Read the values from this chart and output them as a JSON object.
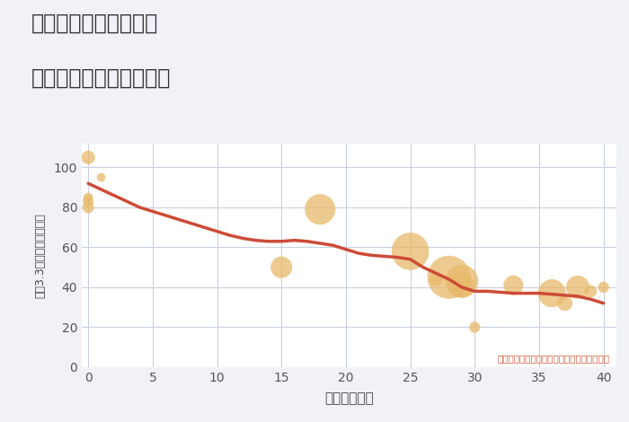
{
  "title_line1": "兵庫県西宮市青葉台の",
  "title_line2": "築年数別中古戸建て価格",
  "xlabel": "築年数（年）",
  "ylabel": "坪（3.3㎡）単価（万円）",
  "annotation": "円の大きさは、取引のあった物件面積を示す",
  "background_color": "#f0f2f7",
  "plot_bg_color": "#ffffff",
  "grid_color": "#c8d0e0",
  "title_color": "#333333",
  "line_color": "#cd4b36",
  "scatter_color": "#e8b96a",
  "scatter_alpha": 0.75,
  "annotation_color": "#cc5533",
  "xlim": [
    -0.5,
    41
  ],
  "ylim": [
    0,
    112
  ],
  "yticks": [
    0,
    20,
    40,
    60,
    80,
    100
  ],
  "xticks": [
    0,
    5,
    10,
    15,
    20,
    25,
    30,
    35,
    40
  ],
  "scatter_x": [
    0,
    0,
    1,
    0,
    0,
    15,
    18,
    25,
    27,
    28,
    29,
    29,
    30,
    33,
    36,
    37,
    38,
    39,
    40
  ],
  "scatter_y": [
    105,
    85,
    95,
    80,
    83,
    50,
    79,
    58,
    44,
    45,
    43,
    41,
    20,
    41,
    37,
    32,
    40,
    38,
    40
  ],
  "scatter_size": [
    120,
    60,
    50,
    90,
    80,
    300,
    600,
    900,
    120,
    1200,
    700,
    400,
    80,
    250,
    500,
    150,
    350,
    100,
    80
  ],
  "line_x": [
    0,
    1,
    2,
    3,
    4,
    5,
    6,
    7,
    8,
    9,
    10,
    11,
    12,
    13,
    14,
    15,
    16,
    17,
    18,
    19,
    20,
    21,
    22,
    23,
    24,
    25,
    26,
    27,
    28,
    29,
    30,
    31,
    32,
    33,
    34,
    35,
    36,
    37,
    38,
    39,
    40
  ],
  "line_y": [
    92,
    89,
    86,
    83,
    80,
    78,
    76,
    74,
    72,
    70,
    68,
    66,
    64.5,
    63.5,
    63,
    63,
    63.5,
    63,
    62,
    61,
    59,
    57,
    56,
    55.5,
    55,
    54,
    50,
    47,
    44,
    40,
    38,
    38,
    37.5,
    37,
    37,
    37,
    36.5,
    36,
    35.5,
    34,
    32
  ]
}
